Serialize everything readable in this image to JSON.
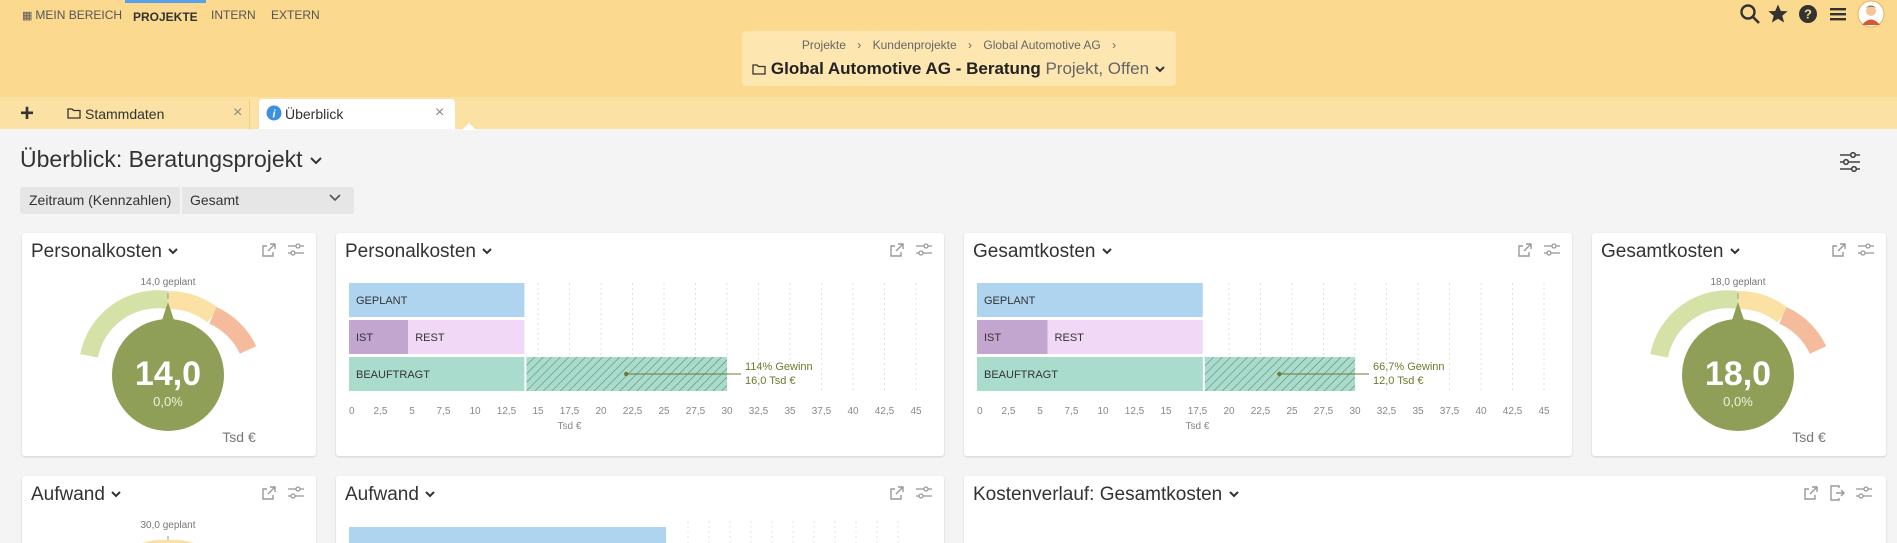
{
  "nav": {
    "items": [
      "MEIN BEREICH",
      "PROJEKTE",
      "INTERN",
      "EXTERN"
    ],
    "active": "PROJEKTE"
  },
  "breadcrumb": [
    "Projekte",
    "Kundenprojekte",
    "Global Automotive AG"
  ],
  "project": {
    "title": "Global Automotive AG - Beratung",
    "status": "Projekt, Offen"
  },
  "tabs": {
    "add": "+",
    "items": [
      {
        "label": "Stammdaten",
        "icon": "folder-icon"
      },
      {
        "label": "Überblick",
        "icon": "info-icon"
      }
    ]
  },
  "heading": "Überblick: Beratungsprojekt",
  "filter": {
    "label": "Zeitraum (Kennzahlen)",
    "value": "Gesamt"
  },
  "colors": {
    "topbar": "#fbd98f",
    "geplant": "#aed4ef",
    "ist": "#c3a6cf",
    "rest": "#f1d8f7",
    "beauftragt": "#a9dccd",
    "gauge_center": "#8f9f58",
    "gain": "#6e7a2c"
  },
  "widgets": {
    "personal_gauge": {
      "title": "Personalkosten",
      "planned": "14,0 geplant",
      "value": "14,0",
      "percent": "0,0%",
      "unit": "Tsd €",
      "value_num": 14.0,
      "planned_num": 14.0
    },
    "personal_bar": {
      "title": "Personalkosten",
      "gain": "114% Gewinn",
      "gain_value": "16,0 Tsd €",
      "axis_label": "Tsd €"
    },
    "gesamt_bar": {
      "title": "Gesamtkosten",
      "gain": "66,7% Gewinn",
      "gain_value": "12,0 Tsd €",
      "axis_label": "Tsd €"
    },
    "gesamt_gauge": {
      "title": "Gesamtkosten",
      "planned": "18,0 geplant",
      "value": "18,0",
      "percent": "0,0%",
      "unit": "Tsd €",
      "value_num": 18.0,
      "planned_num": 18.0
    },
    "aufwand_gauge": {
      "title": "Aufwand",
      "planned": "30,0 geplant"
    },
    "aufwand_bar": {
      "title": "Aufwand"
    },
    "kostenverlauf": {
      "title": "Kostenverlauf: Gesamtkosten"
    }
  },
  "chart_data": [
    {
      "type": "bar",
      "title": "Personalkosten",
      "xlabel": "Tsd €",
      "orientation": "horizontal",
      "categories": [
        "GEPLANT",
        "IST",
        "REST",
        "BEAUFTRAGT"
      ],
      "values": {
        "GEPLANT": 14,
        "IST": 4.7,
        "REST": 9.3,
        "BEAUFTRAGT": 30
      },
      "xlim": [
        0,
        45
      ],
      "ticks": [
        "0",
        "2,5",
        "5",
        "7,5",
        "10",
        "12,5",
        "15",
        "17,5",
        "20",
        "22,5",
        "25",
        "27,5",
        "30",
        "32,5",
        "35",
        "37,5",
        "40",
        "42,5",
        "45"
      ],
      "annotation": "114% Gewinn 16,0 Tsd €"
    },
    {
      "type": "bar",
      "title": "Gesamtkosten",
      "xlabel": "Tsd €",
      "orientation": "horizontal",
      "categories": [
        "GEPLANT",
        "IST",
        "REST",
        "BEAUFTRAGT"
      ],
      "values": {
        "GEPLANT": 18,
        "IST": 5.6,
        "REST": 12.4,
        "BEAUFTRAGT": 30
      },
      "xlim": [
        0,
        45
      ],
      "ticks": [
        "0",
        "2,5",
        "5",
        "7,5",
        "10",
        "12,5",
        "15",
        "17,5",
        "20",
        "22,5",
        "25",
        "27,5",
        "30",
        "32,5",
        "35",
        "37,5",
        "40",
        "42,5",
        "45"
      ],
      "annotation": "66,7% Gewinn 12,0 Tsd €"
    }
  ]
}
